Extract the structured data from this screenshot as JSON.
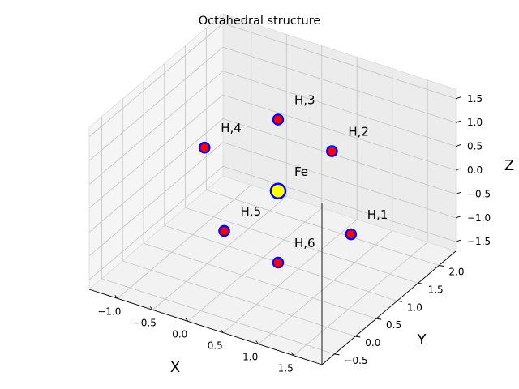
{
  "chart_data": {
    "type": "scatter",
    "projection": "3d",
    "title": "Octahedral structure",
    "xlabel": "X",
    "ylabel": "Y",
    "zlabel": "Z",
    "xlim": [
      -1.4,
      1.9
    ],
    "ylim": [
      -0.8,
      2.4
    ],
    "zlim": [
      -1.7,
      1.7
    ],
    "x_ticks": [
      -1.0,
      -0.5,
      0.0,
      0.5,
      1.0,
      1.5
    ],
    "x_tick_labels": [
      "−1.0",
      "−0.5",
      "0.0",
      "0.5",
      "1.0",
      "1.5"
    ],
    "y_ticks": [
      -0.5,
      0.0,
      0.5,
      1.0,
      1.5,
      2.0
    ],
    "y_tick_labels": [
      "−0.5",
      "0.0",
      "0.5",
      "1.0",
      "1.5",
      "2.0"
    ],
    "z_ticks": [
      -1.5,
      -1.0,
      -0.5,
      0.0,
      0.5,
      1.0,
      1.5
    ],
    "z_tick_labels": [
      "−1.5",
      "−1.0",
      "−0.5",
      "0.0",
      "0.5",
      "1.0",
      "1.5"
    ],
    "grid": true,
    "points": [
      {
        "label": "Fe",
        "x": 0.33,
        "y": 0.8,
        "z": 0.0,
        "color": "#ffff00",
        "edge": "#0000ff"
      },
      {
        "label": "H,1",
        "x": 1.6,
        "y": 0.4,
        "z": 0.0,
        "color": "#ff0000",
        "edge": "#0000ff"
      },
      {
        "label": "H,2",
        "x": 0.4,
        "y": 1.97,
        "z": 0.0,
        "color": "#ff0000",
        "edge": "#0000ff"
      },
      {
        "label": "H,3",
        "x": 0.33,
        "y": 0.8,
        "z": 1.5,
        "color": "#ff0000",
        "edge": "#0000ff"
      },
      {
        "label": "H,4",
        "x": -0.95,
        "y": 1.2,
        "z": 0.0,
        "color": "#ff0000",
        "edge": "#0000ff"
      },
      {
        "label": "H,5",
        "x": 0.26,
        "y": -0.37,
        "z": 0.0,
        "color": "#ff0000",
        "edge": "#0000ff"
      },
      {
        "label": "H,6",
        "x": 0.33,
        "y": 0.8,
        "z": -1.5,
        "color": "#ff0000",
        "edge": "#0000ff"
      }
    ]
  }
}
